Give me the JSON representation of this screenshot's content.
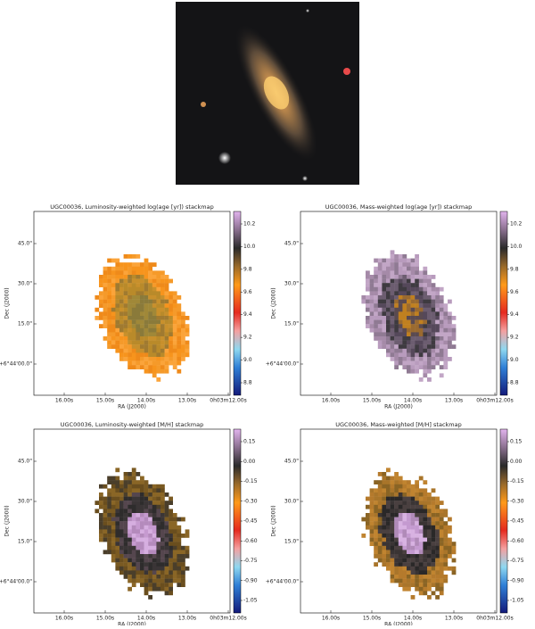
{
  "panels": [
    {
      "title": "UGC00036, Luminosity-weighted log(age [yr]) stackmap",
      "x_label": "RA (J2000)",
      "y_label": "Dec (J2000)",
      "x_ticks": [
        "16.00s",
        "15.00s",
        "14.00s",
        "13.00s",
        "0h03m12.00s"
      ],
      "y_ticks": [
        "45.0\"",
        "30.0\"",
        "15.0\"",
        "+6°44'00.0\""
      ],
      "colorbar_ticks": [
        "10.2",
        "10.0",
        "9.8",
        "9.6",
        "9.4",
        "9.2",
        "9.0",
        "8.8"
      ]
    },
    {
      "title": "UGC00036, Mass-weighted log(age [yr]) stackmap",
      "x_label": "RA (J2000)",
      "y_label": "Dec (J2000)",
      "x_ticks": [
        "16.00s",
        "15.00s",
        "14.00s",
        "13.00s",
        "0h03m12.00s"
      ],
      "y_ticks": [
        "45.0\"",
        "30.0\"",
        "15.0\"",
        "+6°44'00.0\""
      ],
      "colorbar_ticks": [
        "10.2",
        "10.0",
        "9.8",
        "9.6",
        "9.4",
        "9.2",
        "9.0",
        "8.8"
      ]
    },
    {
      "title": "UGC00036, Luminosity-weighted [M/H] stackmap",
      "x_label": "RA (J2000)",
      "y_label": "Dec (J2000)",
      "x_ticks": [
        "16.00s",
        "15.00s",
        "14.00s",
        "13.00s",
        "0h03m12.00s"
      ],
      "y_ticks": [
        "45.0\"",
        "30.0\"",
        "15.0\"",
        "+6°44'00.0\""
      ],
      "colorbar_ticks": [
        "0.15",
        "0.00",
        "-0.15",
        "-0.30",
        "-0.45",
        "-0.60",
        "-0.75",
        "-0.90",
        "-1.05"
      ]
    },
    {
      "title": "UGC00036, Mass-weighted [M/H] stackmap",
      "x_label": "RA (J2000)",
      "y_label": "Dec (J2000)",
      "x_ticks": [
        "16.00s",
        "15.00s",
        "14.00s",
        "13.00s",
        "0h03m12.00s"
      ],
      "y_ticks": [
        "45.0\"",
        "30.0\"",
        "15.0\"",
        "+6°44'00.0\""
      ],
      "colorbar_ticks": [
        "0.15",
        "0.00",
        "-0.15",
        "-0.30",
        "-0.45",
        "-0.60",
        "-0.75",
        "-0.90",
        "-1.05"
      ]
    }
  ]
}
